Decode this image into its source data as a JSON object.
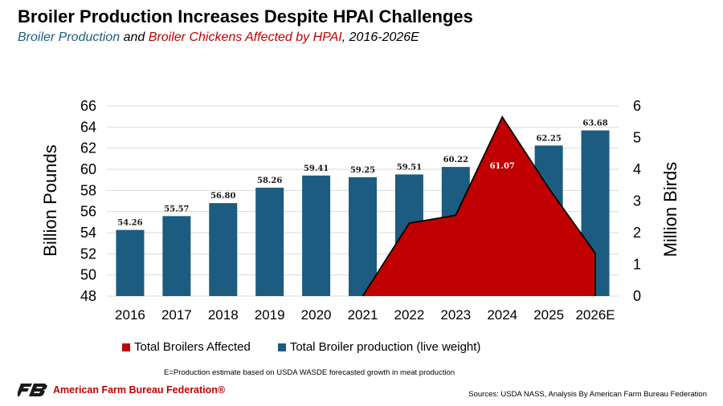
{
  "header": {
    "title": "Broiler Production Increases Despite HPAI Challenges",
    "subtitle_part1": "Broiler Production",
    "subtitle_part2": " and ",
    "subtitle_part3": "Broiler Chickens Affected by HPAI",
    "subtitle_part4": ", 2016-2026E"
  },
  "chart_data": {
    "type": "bar",
    "categories": [
      "2016",
      "2017",
      "2018",
      "2019",
      "2020",
      "2021",
      "2022",
      "2023",
      "2024",
      "2025",
      "2026E"
    ],
    "series": [
      {
        "name": "Total Broiler production  (live weight)",
        "type": "bar",
        "axis": "left",
        "color": "#1b5c80",
        "values": [
          54.26,
          55.57,
          56.8,
          58.26,
          59.41,
          59.25,
          59.51,
          60.22,
          61.07,
          62.25,
          63.68
        ],
        "labels": [
          "54.26",
          "55.57",
          "56.80",
          "58.26",
          "59.41",
          "59.25",
          "59.51",
          "60.22",
          "61.07",
          "62.25",
          "63.68"
        ]
      },
      {
        "name": "Total Broilers Affected",
        "type": "area",
        "axis": "right",
        "color": "#c00000",
        "values": [
          null,
          null,
          null,
          null,
          null,
          0,
          2.3,
          2.55,
          5.65,
          3.4,
          1.35
        ]
      }
    ],
    "ylabel": "Billion Pounds",
    "y2label": "Million Birds",
    "ylim": [
      48,
      66
    ],
    "yticks": [
      "48",
      "50",
      "52",
      "54",
      "56",
      "58",
      "60",
      "62",
      "64",
      "66"
    ],
    "y2lim": [
      0,
      6
    ],
    "y2ticks": [
      "0",
      "1",
      "2",
      "3",
      "4",
      "5",
      "6"
    ],
    "grid": true,
    "legend_position": "bottom"
  },
  "legend": {
    "affected_label": "Total Broilers Affected",
    "production_label": "Total Broiler production  (live weight)"
  },
  "footnote": "E=Production estimate based on USDA WASDE forecasted growth in meat production",
  "logo_text": "American Farm Bureau Federation®",
  "sources": "Sources: USDA NASS, Analysis By American Farm Bureau Federation",
  "colors": {
    "bar": "#1b5c80",
    "area": "#c00000",
    "grid": "#d9d9d9"
  }
}
